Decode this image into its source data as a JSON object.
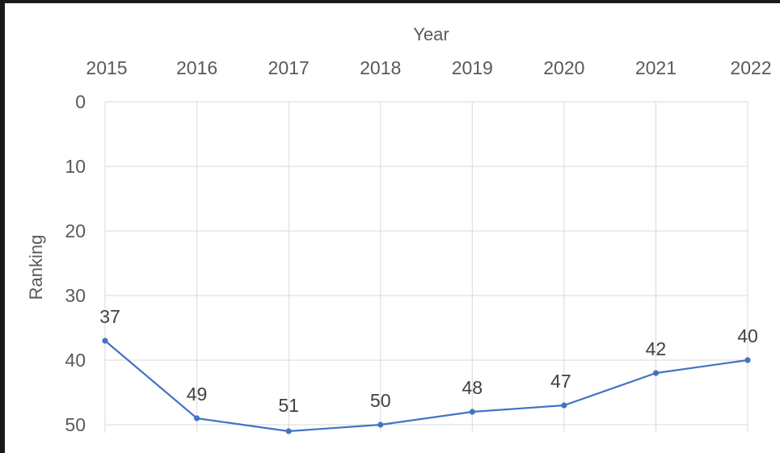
{
  "chart_data": {
    "type": "line",
    "title": "",
    "xlabel": "Year",
    "ylabel": "Ranking",
    "x_axis_position": "top",
    "y_axis_reversed": true,
    "ylim": [
      0,
      50
    ],
    "yticks": [
      0,
      10,
      20,
      30,
      40,
      50
    ],
    "categories": [
      "2015",
      "2016",
      "2017",
      "2018",
      "2019",
      "2020",
      "2021",
      "2022"
    ],
    "series": [
      {
        "values": [
          37,
          49,
          51,
          50,
          48,
          47,
          42,
          40
        ],
        "color": "#4472c4"
      }
    ],
    "data_labels": [
      "37",
      "49",
      "51",
      "50",
      "48",
      "47",
      "42",
      "40"
    ],
    "grid": true,
    "gridline_color": "#d9d9d9",
    "legend": "none"
  }
}
